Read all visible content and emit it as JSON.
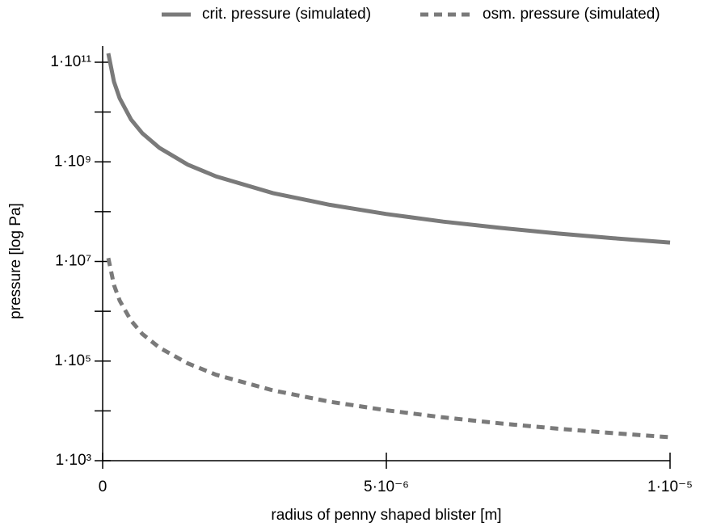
{
  "chart_data": {
    "type": "line",
    "xlabel": "radius of penny shaped blister [m]",
    "ylabel": "pressure [log Pa]",
    "ylog": true,
    "xlim": [
      0,
      1e-05
    ],
    "xticks": [
      0,
      {
        "value": 5e-06,
        "label": "5·10⁻⁶"
      },
      {
        "value": 1e-05,
        "label": "1·10⁻⁵"
      }
    ],
    "ylim": [
      1000,
      100000000000
    ],
    "yticks": [
      {
        "value": 100000000000,
        "label": "1·10¹¹"
      },
      {
        "value": 1000000000,
        "label": "1·10⁹"
      },
      {
        "value": 10000000,
        "label": "1·10⁷"
      },
      {
        "value": 100000,
        "label": "1·10⁵"
      },
      {
        "value": 1000,
        "label": "1·10³"
      }
    ],
    "minor_yticks": [
      10000000000,
      100000000,
      1000000,
      10000
    ],
    "legend": "top",
    "x": [
      1e-07,
      2e-07,
      3e-07,
      5e-07,
      7e-07,
      1e-06,
      1.5e-06,
      2e-06,
      3e-06,
      4e-06,
      5e-06,
      6e-06,
      7e-06,
      8e-06,
      9e-06,
      1e-05
    ],
    "series": [
      {
        "name": "crit. pressure (simulated)",
        "color": "#7a7a7a",
        "dash": false,
        "values": [
          151000000000,
          40600000000,
          18800000000,
          7100000000,
          3750000000,
          1910000000,
          880000000,
          510000000,
          236000000,
          137000000,
          89600000,
          63000000,
          47300000,
          36700000,
          29300000,
          24000000
        ]
      },
      {
        "name": "osm. pressure (simulated)",
        "color": "#7a7a7a",
        "dash": true,
        "values": [
          11700000,
          3370000,
          1630000,
          650000,
          350000,
          186000,
          90000,
          53000,
          25800,
          15300,
          10300,
          7400,
          5610,
          4400,
          3570,
          2950
        ]
      }
    ]
  }
}
